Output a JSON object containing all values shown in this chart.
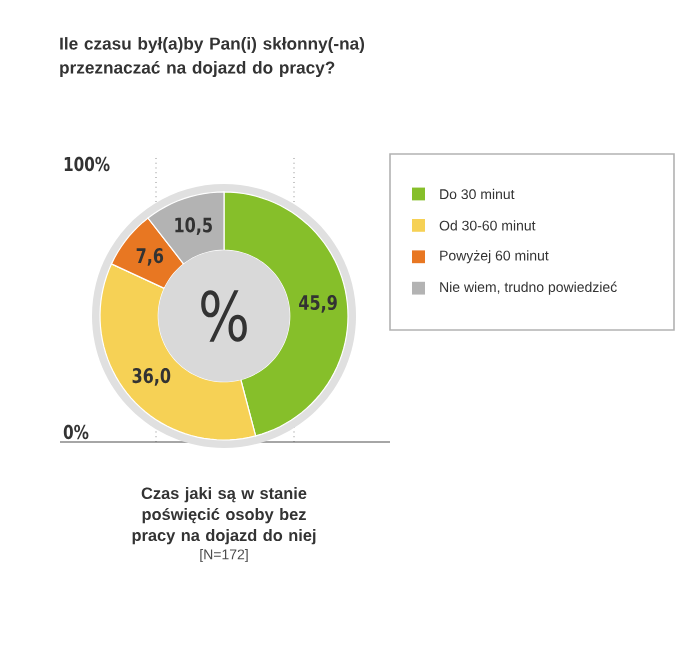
{
  "chart_data": {
    "type": "donut",
    "title": "Ile czasu był(a)by Pan(i) skłonny(-na) przeznaczać na dojazd do pracy?",
    "categories": [
      "Do 30 minut",
      "Od 30-60 minut",
      "Powyżej 60 minut",
      "Nie wiem, trudno powiedzieć"
    ],
    "values": [
      45.9,
      36.0,
      7.6,
      10.5
    ],
    "value_labels": [
      "45,9",
      "36,0",
      "7,6",
      "10,5"
    ],
    "colors": [
      "#86bf2a",
      "#f6d155",
      "#e87722",
      "#b3b3b3"
    ],
    "legend": "right",
    "annotations": [
      "%",
      "100%",
      "0%",
      "Czas jaki są w stanie poświęcić osoby bez pracy na dojazd do niej",
      "[N=172]"
    ]
  }
}
